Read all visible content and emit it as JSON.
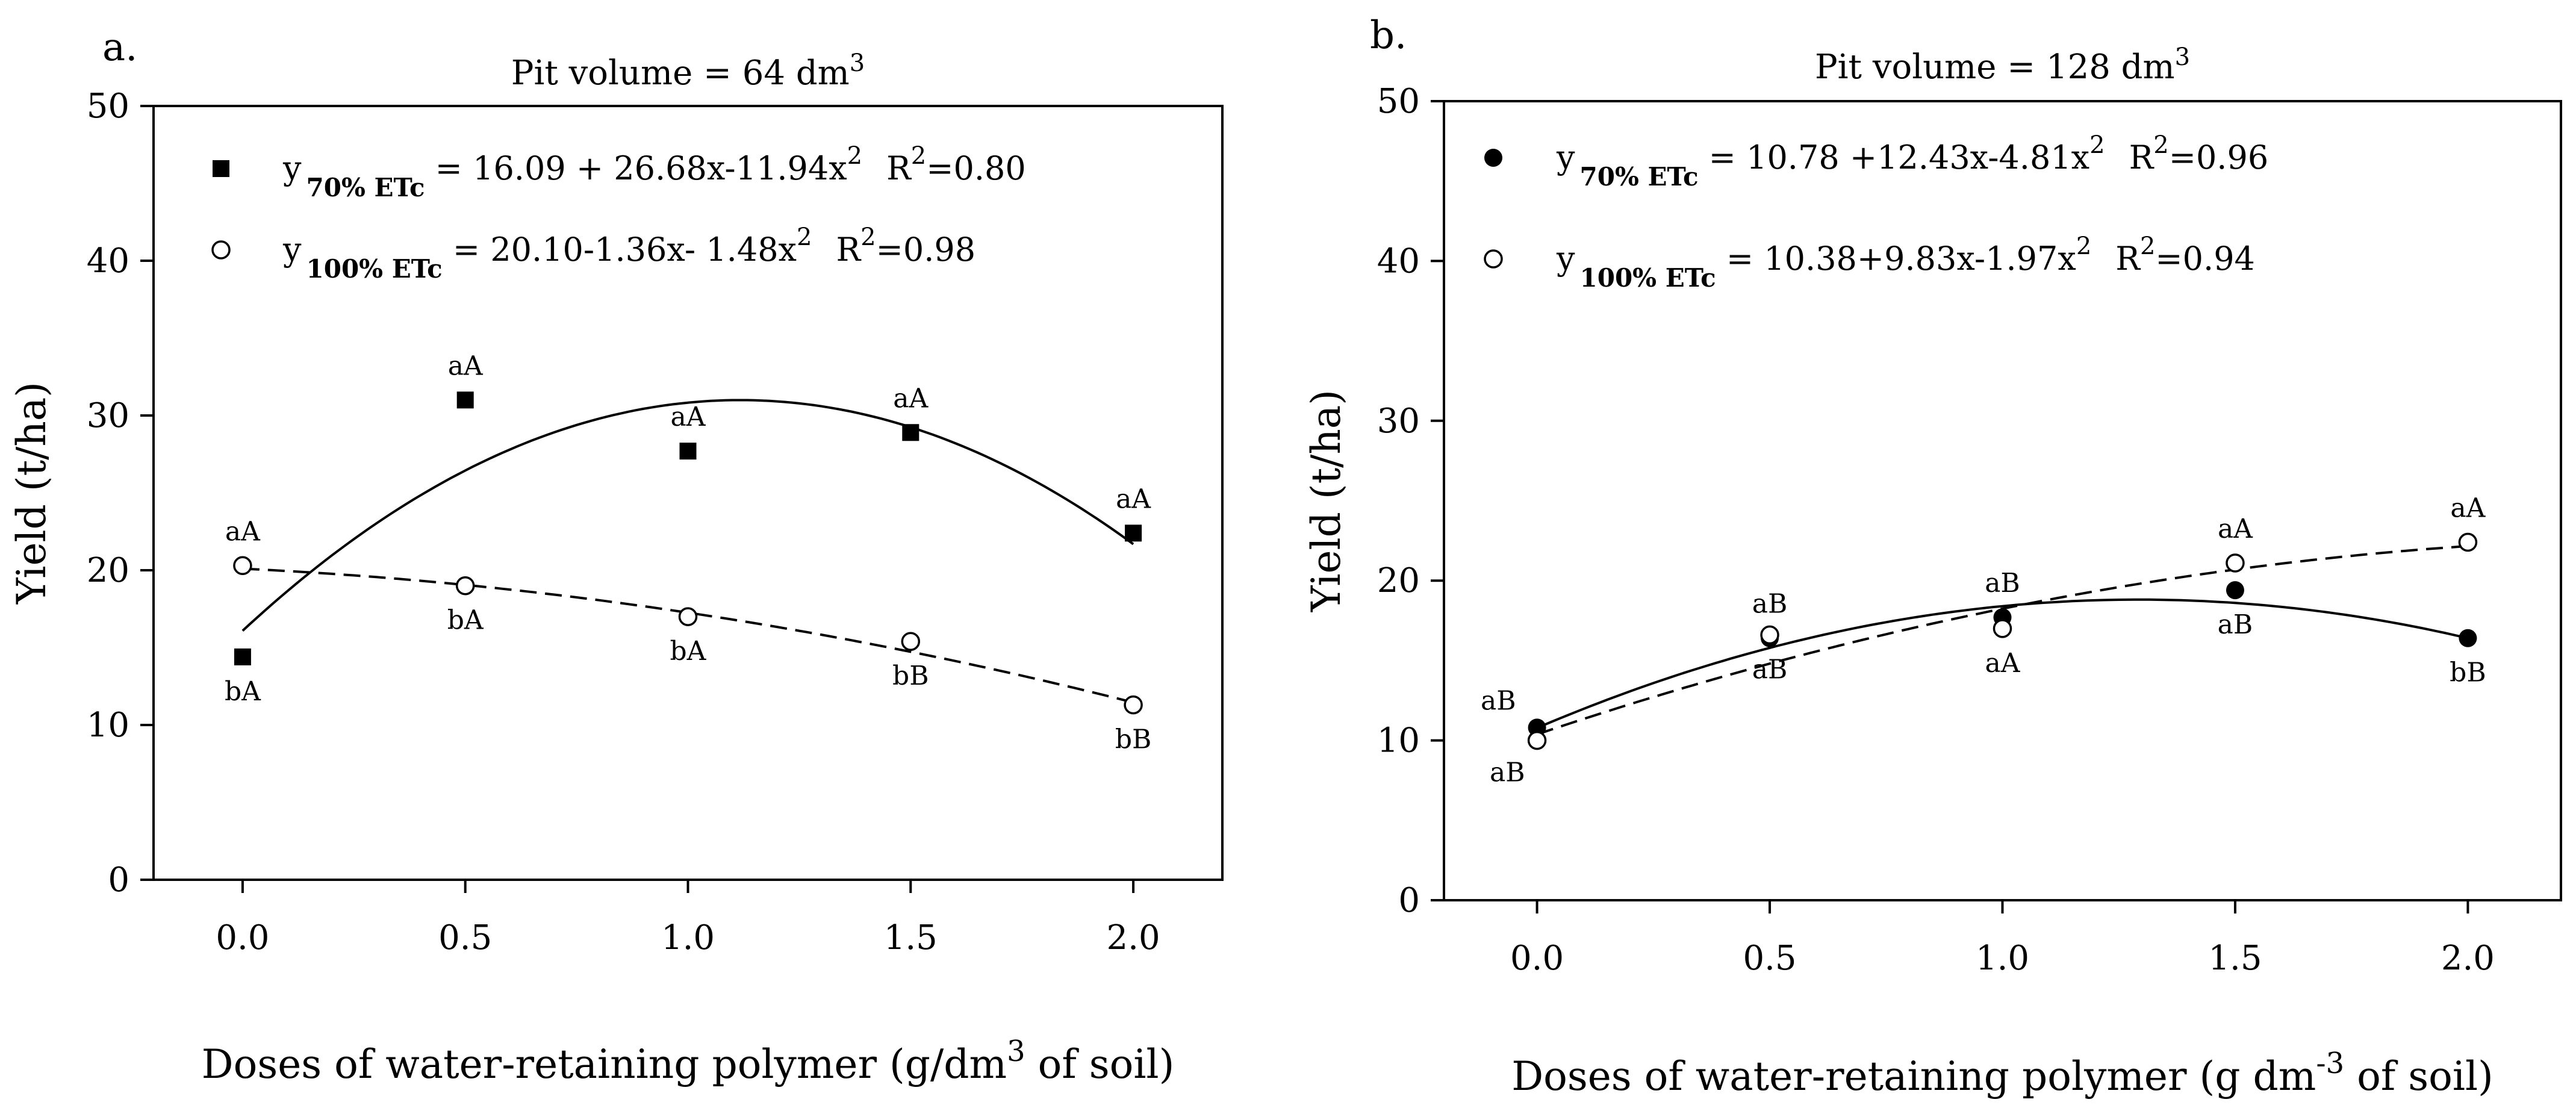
{
  "chart_data": [
    {
      "type": "scatter",
      "panel_label": "a.",
      "title_prefix": "Pit volume = 64 dm",
      "title_sup": "3",
      "xlabel_prefix": "Doses of water-retaining polymer (g/dm",
      "xlabel_sup": "3",
      "xlabel_suffix": " of soil)",
      "ylabel": "Yield (t/ha)",
      "xlim": [
        -0.2,
        2.2
      ],
      "ylim": [
        0,
        50
      ],
      "x_ticks": [
        0.0,
        0.5,
        1.0,
        1.5,
        2.0
      ],
      "x_tick_labels": [
        "0.0",
        "0.5",
        "1.0",
        "1.5",
        "2.0"
      ],
      "y_ticks": [
        0,
        10,
        20,
        30,
        40,
        50
      ],
      "y_tick_labels": [
        "0",
        "10",
        "20",
        "30",
        "40",
        "50"
      ],
      "series": [
        {
          "name": "70% ETc",
          "marker": "filled-square",
          "line": "solid",
          "x": [
            0.0,
            0.5,
            1.0,
            1.5,
            2.0
          ],
          "values": [
            14.4,
            31.0,
            27.7,
            28.9,
            22.4
          ],
          "labels": [
            "bA",
            "aA",
            "aA",
            "aA",
            "aA"
          ],
          "label_pos": [
            "below",
            "above",
            "above",
            "above",
            "above"
          ],
          "fit": [
            16.09,
            26.68,
            -11.94
          ],
          "legend_y": "y",
          "legend_sub": "70% ETc",
          "legend_eq": " = 16.09 + 26.68x-11.94x",
          "legend_r2": "R",
          "legend_r2_val": "=0.80"
        },
        {
          "name": "100% ETc",
          "marker": "open-circle",
          "line": "dashed",
          "x": [
            0.0,
            0.5,
            1.0,
            1.5,
            2.0
          ],
          "values": [
            20.3,
            19.0,
            17.0,
            15.4,
            11.3
          ],
          "labels": [
            "aA",
            "bA",
            "bA",
            "bB",
            "bB"
          ],
          "label_pos": [
            "above",
            "below",
            "below",
            "below",
            "below"
          ],
          "fit": [
            20.1,
            -1.36,
            -1.48
          ],
          "legend_y": "y",
          "legend_sub": "100% ETc",
          "legend_eq": " = 20.10-1.36x- 1.48x",
          "legend_r2": "R",
          "legend_r2_val": "=0.98"
        }
      ]
    },
    {
      "type": "scatter",
      "panel_label": "b.",
      "title_prefix": "Pit volume = 128 dm",
      "title_sup": "3",
      "xlabel_prefix": "Doses of water-retaining polymer (g dm",
      "xlabel_sup": "-3",
      "xlabel_suffix": " of soil)",
      "ylabel": "Yield (t/ha)",
      "xlim": [
        -0.2,
        2.2
      ],
      "ylim": [
        0,
        50
      ],
      "x_ticks": [
        0.0,
        0.5,
        1.0,
        1.5,
        2.0
      ],
      "x_tick_labels": [
        "0.0",
        "0.5",
        "1.0",
        "1.5",
        "2.0"
      ],
      "y_ticks": [
        0,
        10,
        20,
        30,
        40,
        50
      ],
      "y_tick_labels": [
        "0",
        "10",
        "20",
        "30",
        "40",
        "50"
      ],
      "series": [
        {
          "name": "70% ETc",
          "marker": "filled-circle",
          "line": "solid",
          "x": [
            0.0,
            0.5,
            1.0,
            1.5,
            2.0
          ],
          "values": [
            10.8,
            16.4,
            17.7,
            19.4,
            16.4
          ],
          "labels": [
            "aB",
            "aB",
            "aB",
            "aB",
            "bB"
          ],
          "label_pos": [
            "above-left",
            "above",
            "above",
            "below",
            "below"
          ],
          "fit": [
            10.78,
            12.43,
            -4.81
          ],
          "legend_y": "y",
          "legend_sub": "70% ETc",
          "legend_eq": " = 10.78 +12.43x-4.81x",
          "legend_r2": "R",
          "legend_r2_val": "=0.96"
        },
        {
          "name": "100% ETc",
          "marker": "open-circle",
          "line": "dashed",
          "x": [
            0.0,
            0.5,
            1.0,
            1.5,
            2.0
          ],
          "values": [
            10.0,
            16.6,
            17.0,
            21.1,
            22.4
          ],
          "labels": [
            "aB",
            "aB",
            "aA",
            "aA",
            "aA"
          ],
          "label_pos": [
            "below-left",
            "below",
            "below",
            "above",
            "above"
          ],
          "fit": [
            10.38,
            9.83,
            -1.97
          ],
          "legend_y": "y",
          "legend_sub": "100% ETc",
          "legend_eq": " =  10.38+9.83x-1.97x",
          "legend_r2": "R",
          "legend_r2_val": "=0.94"
        }
      ]
    }
  ]
}
